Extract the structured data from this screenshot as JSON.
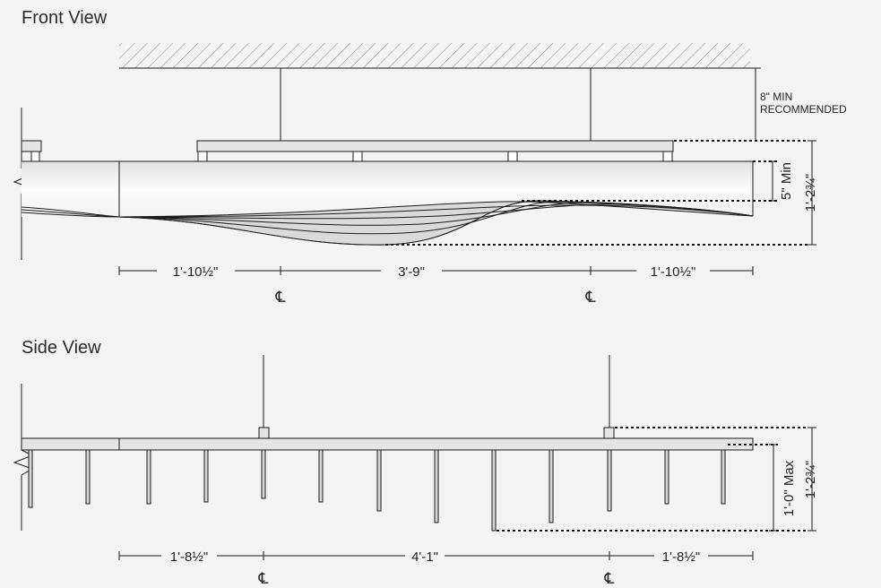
{
  "front_view": {
    "title": "Front View",
    "ceiling_note_line1": "8\" MIN",
    "ceiling_note_line2": "RECOMMENDED",
    "min_height": "5\" Min",
    "total_height": "1'-2¾\"",
    "dims": [
      "1'-10½\"",
      "3'-9\"",
      "1'-10½\""
    ],
    "centerline_symbol": "℄"
  },
  "side_view": {
    "title": "Side View",
    "max_height": "1'-0\" Max",
    "total_height": "1'-2¾\"",
    "dims": [
      "1'-8½\"",
      "4'-1\"",
      "1'-8½\""
    ],
    "centerline_symbol": "℄"
  },
  "colors": {
    "background": "#f3f3f3",
    "line": "#1a1a1a",
    "fill_light": "#e4e4e4",
    "fill_blade": "#d6d6d6"
  }
}
